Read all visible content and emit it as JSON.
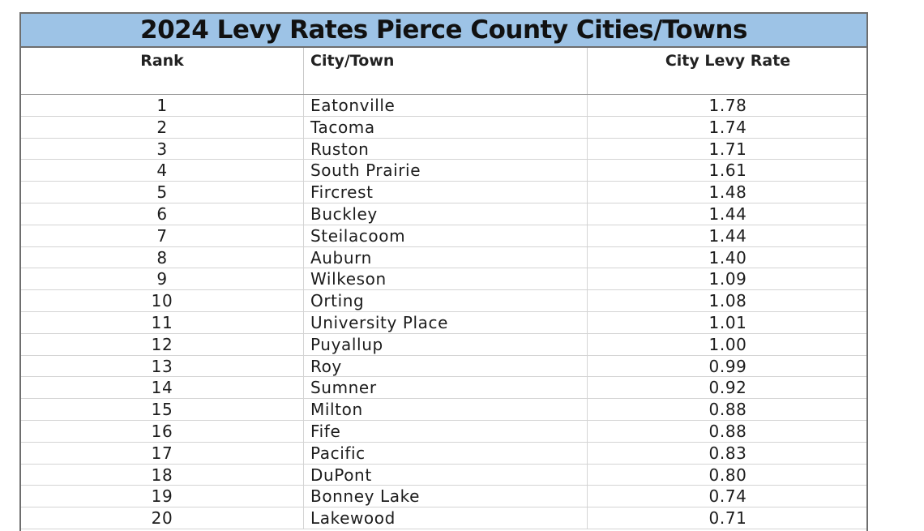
{
  "title": "2024 Levy Rates Pierce County Cities/Towns",
  "columns": {
    "rank": "Rank",
    "city": "City/Town",
    "rate": "City Levy Rate"
  },
  "rows": [
    {
      "rank": "1",
      "city": "Eatonville",
      "rate": "1.78"
    },
    {
      "rank": "2",
      "city": "Tacoma",
      "rate": "1.74"
    },
    {
      "rank": "3",
      "city": "Ruston",
      "rate": "1.71"
    },
    {
      "rank": "4",
      "city": "South Prairie",
      "rate": "1.61"
    },
    {
      "rank": "5",
      "city": "Fircrest",
      "rate": "1.48"
    },
    {
      "rank": "6",
      "city": "Buckley",
      "rate": "1.44"
    },
    {
      "rank": "7",
      "city": "Steilacoom",
      "rate": "1.44"
    },
    {
      "rank": "8",
      "city": "Auburn",
      "rate": "1.40"
    },
    {
      "rank": "9",
      "city": "Wilkeson",
      "rate": "1.09"
    },
    {
      "rank": "10",
      "city": "Orting",
      "rate": "1.08"
    },
    {
      "rank": "11",
      "city": "University Place",
      "rate": "1.01"
    },
    {
      "rank": "12",
      "city": "Puyallup",
      "rate": "1.00"
    },
    {
      "rank": "13",
      "city": "Roy",
      "rate": "0.99"
    },
    {
      "rank": "14",
      "city": "Sumner",
      "rate": "0.92"
    },
    {
      "rank": "15",
      "city": "Milton",
      "rate": "0.88"
    },
    {
      "rank": "16",
      "city": "Fife",
      "rate": "0.88"
    },
    {
      "rank": "17",
      "city": "Pacific",
      "rate": "0.83"
    },
    {
      "rank": "18",
      "city": "DuPont",
      "rate": "0.80"
    },
    {
      "rank": "19",
      "city": "Bonney Lake",
      "rate": "0.74"
    },
    {
      "rank": "20",
      "city": "Lakewood",
      "rate": "0.71"
    }
  ],
  "colors": {
    "title_background": "#9dc3e6",
    "border": "#6e6e6e",
    "gridline": "#d4d4d4"
  }
}
